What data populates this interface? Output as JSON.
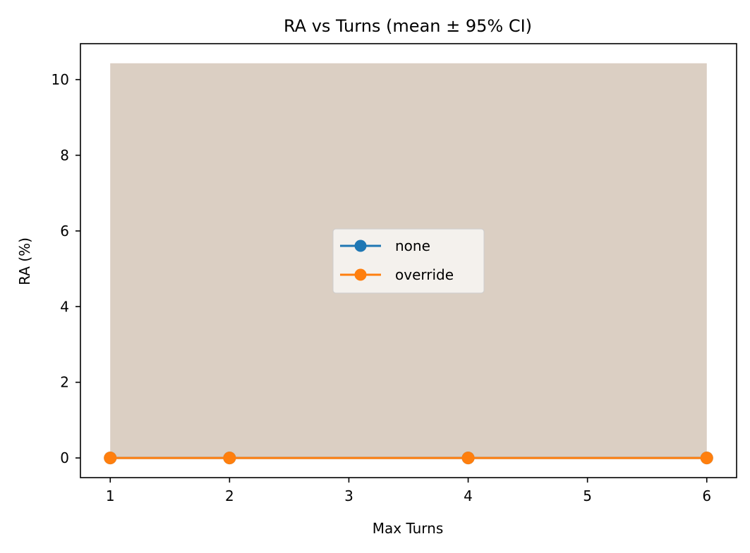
{
  "chart_data": {
    "type": "line",
    "title": "RA vs Turns (mean ± 95% CI)",
    "xlabel": "Max Turns",
    "ylabel": "RA (%)",
    "xlim": [
      0.75,
      6.25
    ],
    "ylim": [
      -0.52,
      10.95
    ],
    "xticks": [
      1,
      2,
      3,
      4,
      5,
      6
    ],
    "yticks": [
      0,
      2,
      4,
      6,
      8,
      10
    ],
    "x": [
      1,
      2,
      4,
      6
    ],
    "series": [
      {
        "name": "none",
        "color": "#1f77b4",
        "marker": "circle",
        "values": [
          0,
          0,
          0,
          0
        ],
        "ci_lower": [
          0,
          0,
          0,
          0
        ],
        "ci_upper": [
          10.43,
          10.43,
          10.43,
          10.43
        ]
      },
      {
        "name": "override",
        "color": "#ff7f0e",
        "marker": "circle",
        "values": [
          0,
          0,
          0,
          0
        ],
        "ci_lower": [
          0,
          0,
          0,
          0
        ],
        "ci_upper": [
          10.43,
          10.43,
          10.43,
          10.43
        ]
      }
    ],
    "ci_fill_color": "#dbcfc4",
    "legend": {
      "location": "center"
    },
    "grid": false
  }
}
